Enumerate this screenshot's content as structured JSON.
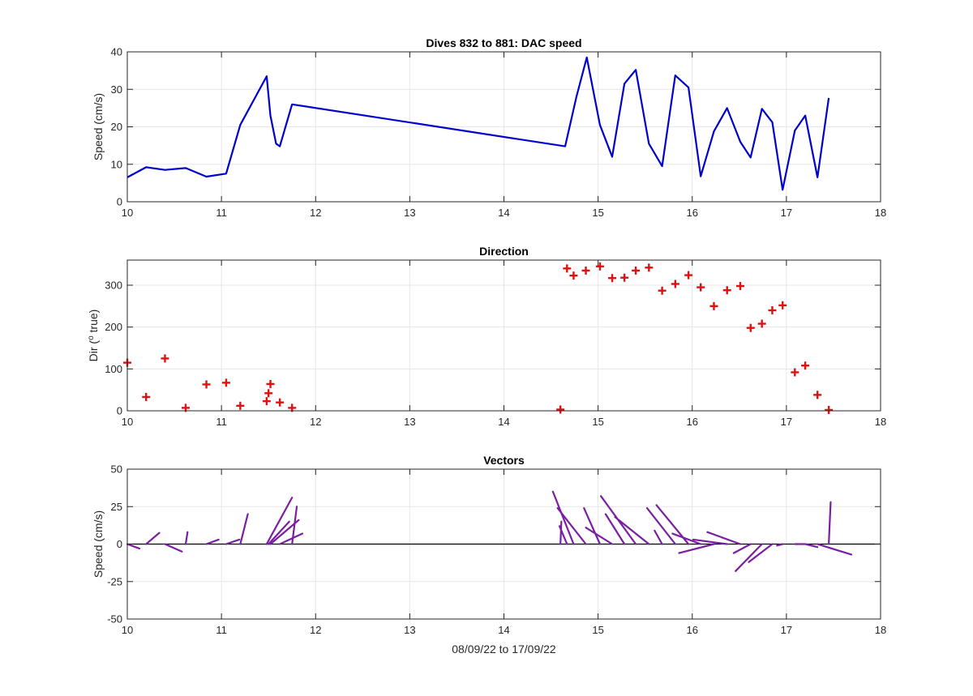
{
  "chart_data": [
    {
      "type": "line",
      "title": "Dives 832 to 881: DAC speed",
      "xlabel": "",
      "ylabel": "Speed (cm/s)",
      "xlim": [
        10,
        18
      ],
      "ylim": [
        0,
        40
      ],
      "xticks": [
        "10",
        "11",
        "12",
        "13",
        "14",
        "15",
        "16",
        "17",
        "18"
      ],
      "yticks": [
        "0",
        "10",
        "20",
        "30",
        "40"
      ],
      "grid": true,
      "color": "#0000cc",
      "series": [
        {
          "x": [
            10.0,
            10.2,
            10.4,
            10.62,
            10.84,
            11.05,
            11.2,
            11.48,
            11.52,
            11.58,
            11.62,
            11.75,
            14.65,
            14.77,
            14.88,
            15.02,
            15.15,
            15.28,
            15.4,
            15.54,
            15.68,
            15.82,
            15.96,
            16.09,
            16.23,
            16.37,
            16.51,
            16.62,
            16.74,
            16.85,
            16.96,
            17.09,
            17.2,
            17.33,
            17.45
          ],
          "y": [
            6.5,
            9.2,
            8.5,
            9.0,
            6.7,
            7.5,
            20.5,
            33.5,
            23,
            15.5,
            14.8,
            26,
            14.8,
            28,
            38.5,
            20.5,
            12,
            31.5,
            35.2,
            15.5,
            9.5,
            33.7,
            30.5,
            6.8,
            18.8,
            25,
            16,
            11.8,
            24.8,
            21.2,
            3.2,
            19,
            23,
            6.5,
            27.7
          ]
        }
      ]
    },
    {
      "type": "scatter",
      "title": "Direction",
      "xlabel": "",
      "ylabel": "Dir (o true)",
      "ylabel_main": "Dir (",
      "ylabel_sup": "o",
      "ylabel_tail": " true)",
      "xlim": [
        10,
        18
      ],
      "ylim": [
        0,
        360
      ],
      "xticks": [
        "10",
        "11",
        "12",
        "13",
        "14",
        "15",
        "16",
        "17",
        "18"
      ],
      "yticks": [
        "0",
        "100",
        "200",
        "300"
      ],
      "grid": true,
      "marker": "+",
      "color": "#e01010",
      "series": [
        {
          "x": [
            10.0,
            10.2,
            10.4,
            10.62,
            10.84,
            11.05,
            11.2,
            11.48,
            11.5,
            11.52,
            11.62,
            11.75,
            14.6,
            14.67,
            14.74,
            14.87,
            15.02,
            15.15,
            15.28,
            15.4,
            15.54,
            15.68,
            15.82,
            15.96,
            16.09,
            16.23,
            16.37,
            16.51,
            16.62,
            16.74,
            16.85,
            16.96,
            17.09,
            17.2,
            17.33,
            17.45
          ],
          "y": [
            115,
            33,
            125,
            7,
            63,
            67,
            12,
            23,
            42,
            64,
            20,
            7,
            3,
            340,
            323,
            335,
            345,
            317,
            318,
            335,
            342,
            287,
            303,
            324,
            295,
            250,
            288,
            298,
            198,
            208,
            240,
            252,
            92,
            108,
            38,
            2
          ]
        }
      ]
    },
    {
      "type": "line",
      "title": "Vectors",
      "xlabel": "08/09/22 to 17/09/22",
      "ylabel": "Speed (cm/s)",
      "xlim": [
        10,
        18
      ],
      "ylim": [
        -50,
        50
      ],
      "xticks": [
        "10",
        "11",
        "12",
        "13",
        "14",
        "15",
        "16",
        "17",
        "18"
      ],
      "yticks": [
        "-50",
        "-25",
        "0",
        "25",
        "50"
      ],
      "grid": true,
      "color": "#7a1fa0",
      "segments": [
        {
          "x0": 10.0,
          "dx": 0.13,
          "dy": -3
        },
        {
          "x0": 10.2,
          "dx": 0.14,
          "dy": 7.5
        },
        {
          "x0": 10.4,
          "dx": 0.18,
          "dy": -5
        },
        {
          "x0": 10.62,
          "dx": 0.02,
          "dy": 8
        },
        {
          "x0": 10.84,
          "dx": 0.13,
          "dy": 3
        },
        {
          "x0": 11.05,
          "dx": 0.14,
          "dy": 3
        },
        {
          "x0": 11.2,
          "dx": 0.08,
          "dy": 20
        },
        {
          "x0": 11.48,
          "dx": 0.27,
          "dy": 31
        },
        {
          "x0": 11.5,
          "dx": 0.22,
          "dy": 15
        },
        {
          "x0": 11.52,
          "dx": 0.3,
          "dy": 16
        },
        {
          "x0": 11.62,
          "dx": 0.24,
          "dy": 7
        },
        {
          "x0": 11.75,
          "dx": 0.05,
          "dy": 25
        },
        {
          "x0": 14.6,
          "dx": 0.01,
          "dy": 15
        },
        {
          "x0": 14.67,
          "dx": -0.08,
          "dy": 12
        },
        {
          "x0": 14.74,
          "dx": -0.22,
          "dy": 35
        },
        {
          "x0": 14.87,
          "dx": -0.3,
          "dy": 24
        },
        {
          "x0": 15.02,
          "dx": -0.17,
          "dy": 24
        },
        {
          "x0": 15.15,
          "dx": -0.28,
          "dy": 11
        },
        {
          "x0": 15.28,
          "dx": -0.2,
          "dy": 20
        },
        {
          "x0": 15.4,
          "dx": -0.37,
          "dy": 32
        },
        {
          "x0": 15.54,
          "dx": -0.36,
          "dy": 18
        },
        {
          "x0": 15.68,
          "dx": -0.08,
          "dy": 9
        },
        {
          "x0": 15.82,
          "dx": -0.3,
          "dy": 24
        },
        {
          "x0": 15.96,
          "dx": -0.34,
          "dy": 26
        },
        {
          "x0": 16.09,
          "dx": -0.3,
          "dy": 7
        },
        {
          "x0": 16.23,
          "dx": -0.37,
          "dy": -6
        },
        {
          "x0": 16.37,
          "dx": -0.36,
          "dy": 3
        },
        {
          "x0": 16.51,
          "dx": -0.35,
          "dy": 8
        },
        {
          "x0": 16.62,
          "dx": -0.18,
          "dy": -6
        },
        {
          "x0": 16.74,
          "dx": -0.28,
          "dy": -18
        },
        {
          "x0": 16.85,
          "dx": -0.25,
          "dy": -12
        },
        {
          "x0": 16.96,
          "dx": -0.06,
          "dy": -1
        },
        {
          "x0": 17.09,
          "dx": 0.1,
          "dy": 0
        },
        {
          "x0": 17.2,
          "dx": 0.13,
          "dy": -2
        },
        {
          "x0": 17.33,
          "dx": 0.36,
          "dy": -7
        },
        {
          "x0": 17.45,
          "dx": 0.02,
          "dy": 28
        }
      ]
    }
  ]
}
